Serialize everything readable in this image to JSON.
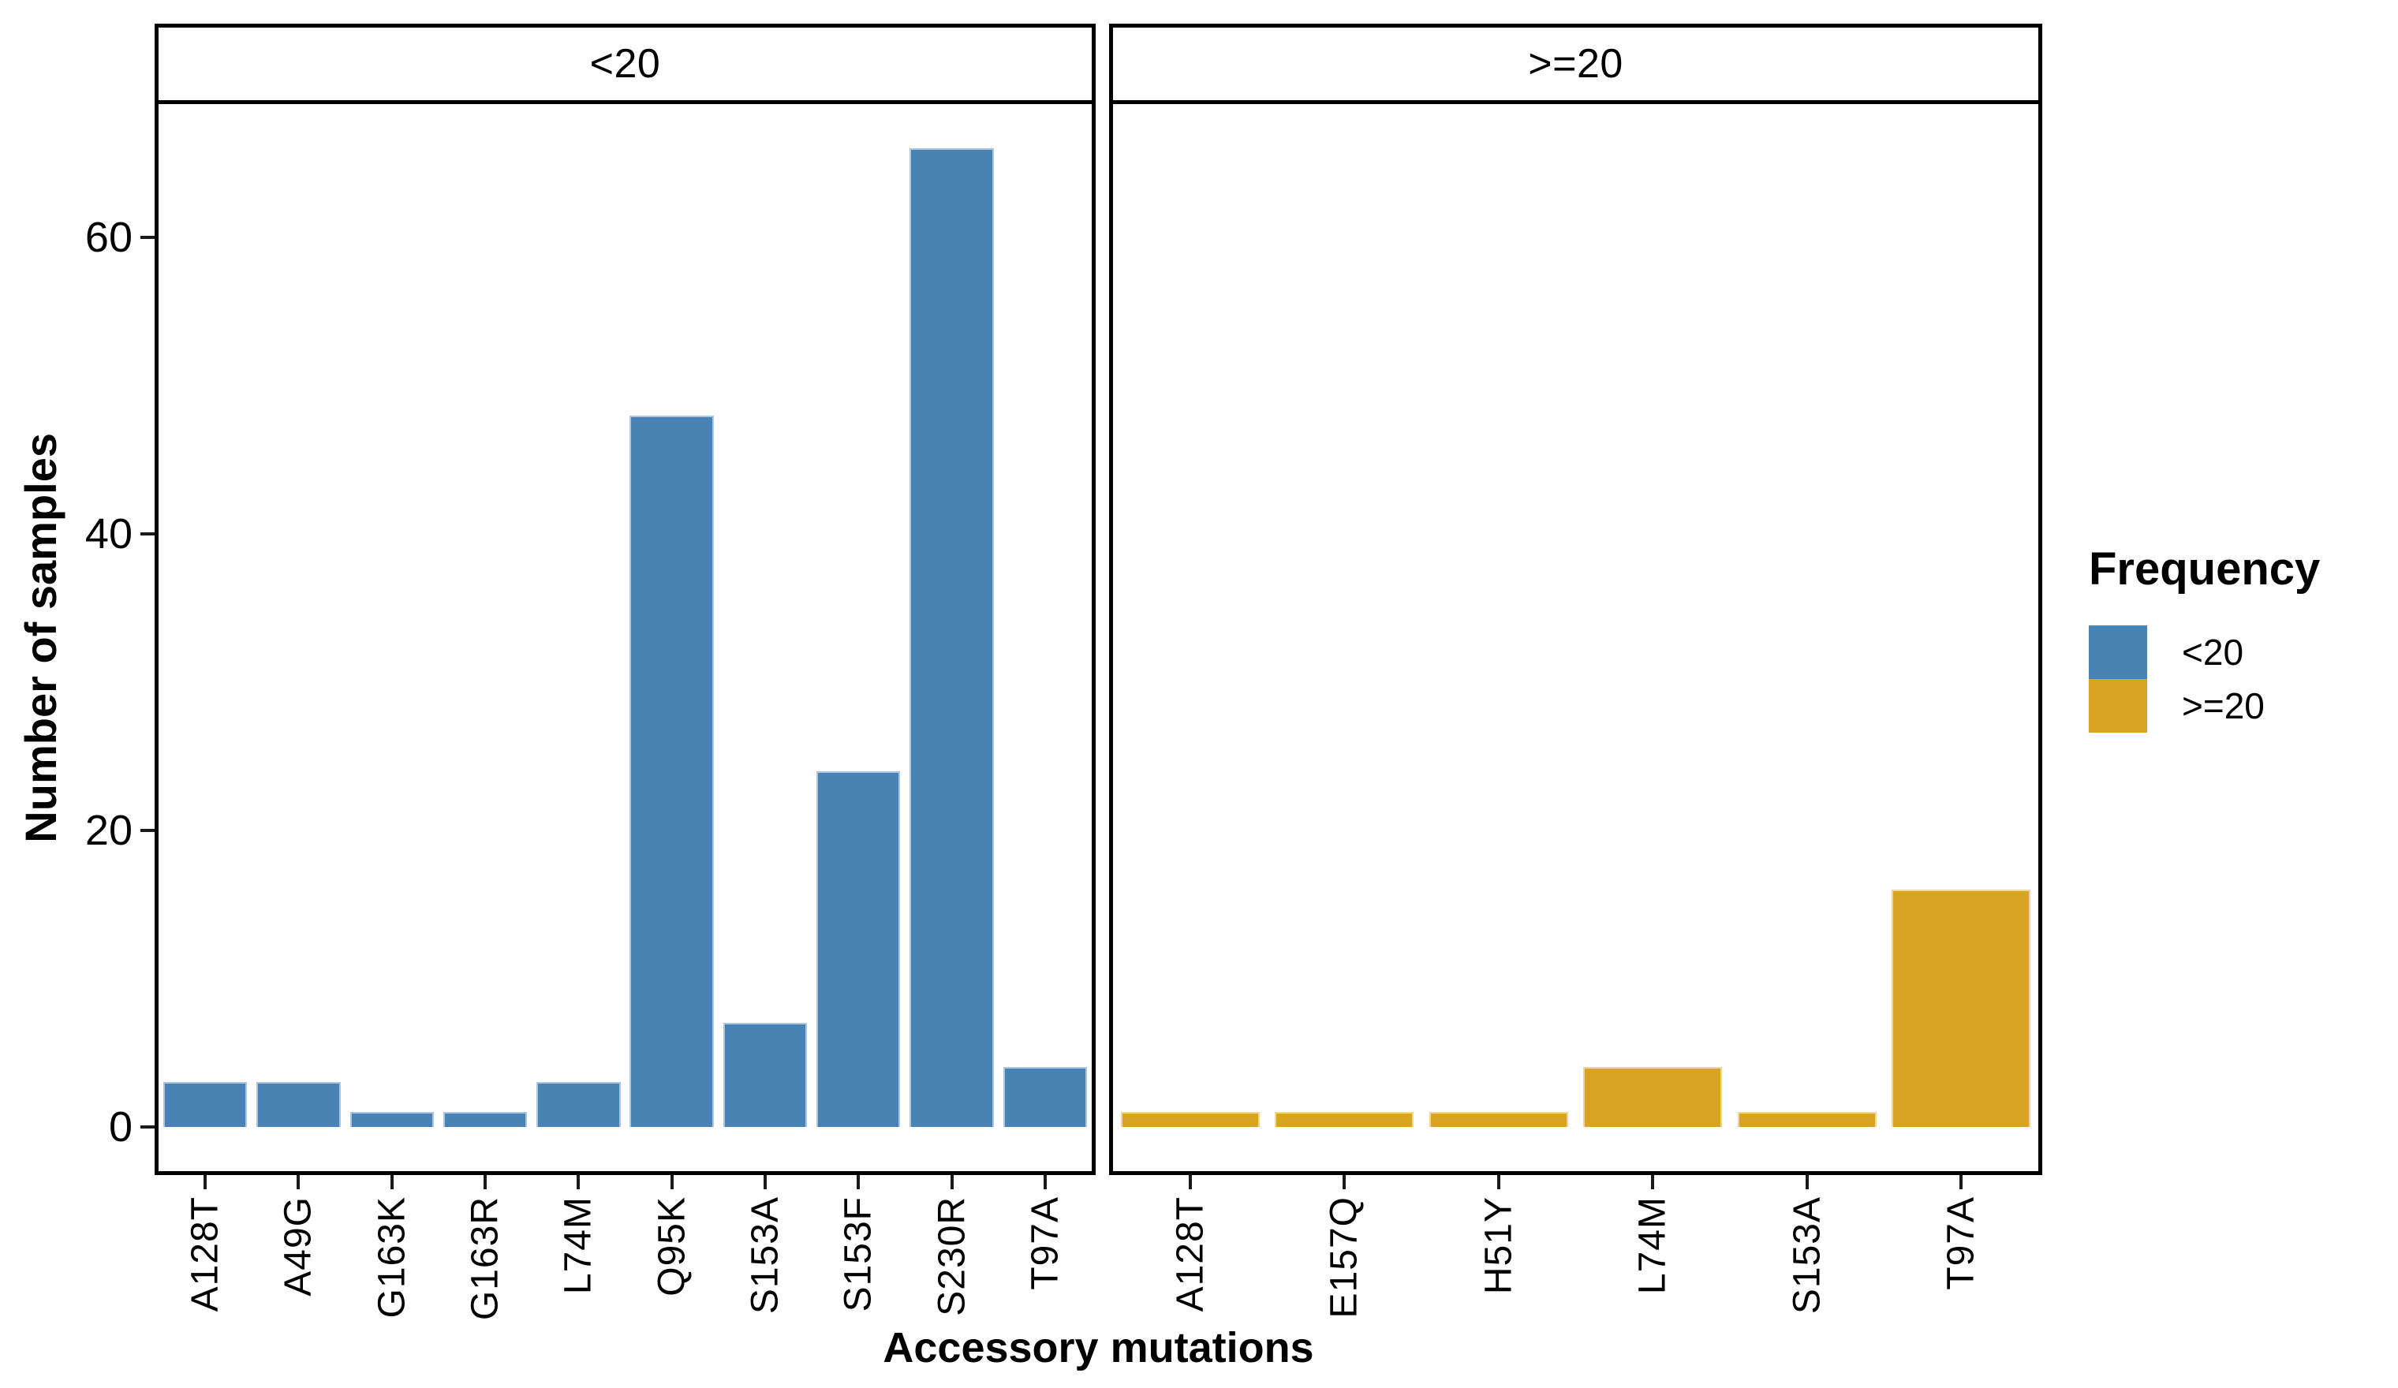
{
  "chart_data": {
    "type": "bar",
    "title": "",
    "xlabel": "Accessory mutations",
    "ylabel": "Number of samples",
    "yticks": [
      0,
      20,
      40,
      60
    ],
    "ylim": [
      -3,
      69
    ],
    "grid": false,
    "legend_position": "right",
    "facets": [
      {
        "label": "<20",
        "color": "#4982B4",
        "categories": [
          "A128T",
          "A49G",
          "G163K",
          "G163R",
          "L74M",
          "Q95K",
          "S153A",
          "S153F",
          "S230R",
          "T97A"
        ],
        "values": [
          3,
          3,
          1,
          1,
          3,
          48,
          7,
          24,
          66,
          4
        ]
      },
      {
        "label": ">=20",
        "color": "#DAA423",
        "categories": [
          "A128T",
          "E157Q",
          "H51Y",
          "L74M",
          "S153A",
          "T97A"
        ],
        "values": [
          1,
          1,
          1,
          4,
          1,
          16
        ]
      }
    ]
  },
  "legend": {
    "title": "Frequency",
    "entries": [
      {
        "label": "<20",
        "color": "#4982B4"
      },
      {
        "label": ">=20",
        "color": "#DAA423"
      }
    ]
  }
}
